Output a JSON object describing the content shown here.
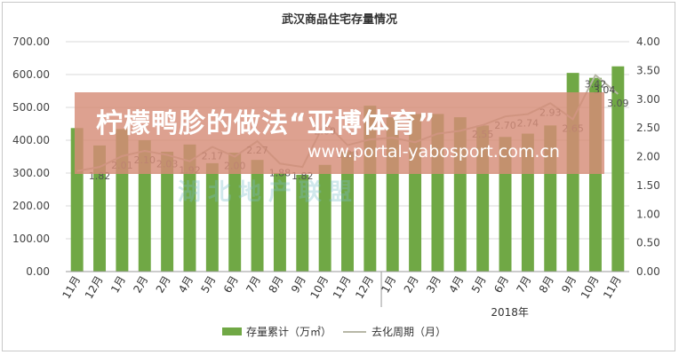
{
  "chart_data": {
    "type": "bar+line",
    "title": "武汉商品住宅存量情况",
    "categories": [
      "11月",
      "12月",
      "1月",
      "2月",
      "2月",
      "4月",
      "5月",
      "6月",
      "7月",
      "8月",
      "9月",
      "10月",
      "11月",
      "12月",
      "1月",
      "2月",
      "3月",
      "4月",
      "5月",
      "6月",
      "7月",
      "8月",
      "9月",
      "10月",
      "11月"
    ],
    "year_label": "2018年",
    "series": [
      {
        "name": "存量累计（万㎡）",
        "type": "bar",
        "axis": "left",
        "color": "#70a845",
        "values": [
          437,
          384,
          434,
          400,
          365,
          387,
          330,
          362,
          340,
          300,
          295,
          325,
          365,
          505,
          470,
          480,
          480,
          470,
          445,
          410,
          420,
          445,
          605,
          590,
          625
        ]
      },
      {
        "name": "去化周期（月）",
        "type": "line",
        "axis": "right",
        "color": "#b7b7a7",
        "values": [
          1.75,
          1.82,
          2.01,
          2.1,
          2.03,
          1.92,
          2.17,
          2.0,
          2.27,
          1.88,
          1.82,
          2.6,
          2.2,
          2.3,
          2.33,
          2.25,
          2.4,
          2.45,
          2.55,
          2.7,
          2.74,
          2.93,
          2.65,
          3.42,
          3.09
        ],
        "labels": [
          "",
          "1.82",
          "2.01",
          "2.10",
          "2.03",
          "1.92",
          "2.17",
          "2.00",
          "2.27",
          "1.88",
          "1.82",
          "2.60",
          "2.20",
          "",
          "",
          "",
          "",
          "",
          "2.55",
          "2.70",
          "2.74",
          "2.93",
          "2.65",
          "3.42",
          "3.09"
        ],
        "extra_label": "3.04"
      }
    ],
    "y_left": {
      "min": 0,
      "max": 700,
      "ticks": [
        "0.00",
        "100.00",
        "200.00",
        "300.00",
        "400.00",
        "500.00",
        "600.00",
        "700.00"
      ]
    },
    "y_right": {
      "min": 0,
      "max": 4,
      "ticks": [
        "0.00",
        "0.50",
        "1.00",
        "1.50",
        "2.00",
        "2.50",
        "3.00",
        "3.50",
        "4.00"
      ]
    },
    "grid": true,
    "legend": "bottom"
  },
  "overlay": {
    "title": "柠檬鸭胗的做法“亚博体育”",
    "url": "www.portal-yabosport.com.cn"
  },
  "watermark": "湖北地产联盟"
}
